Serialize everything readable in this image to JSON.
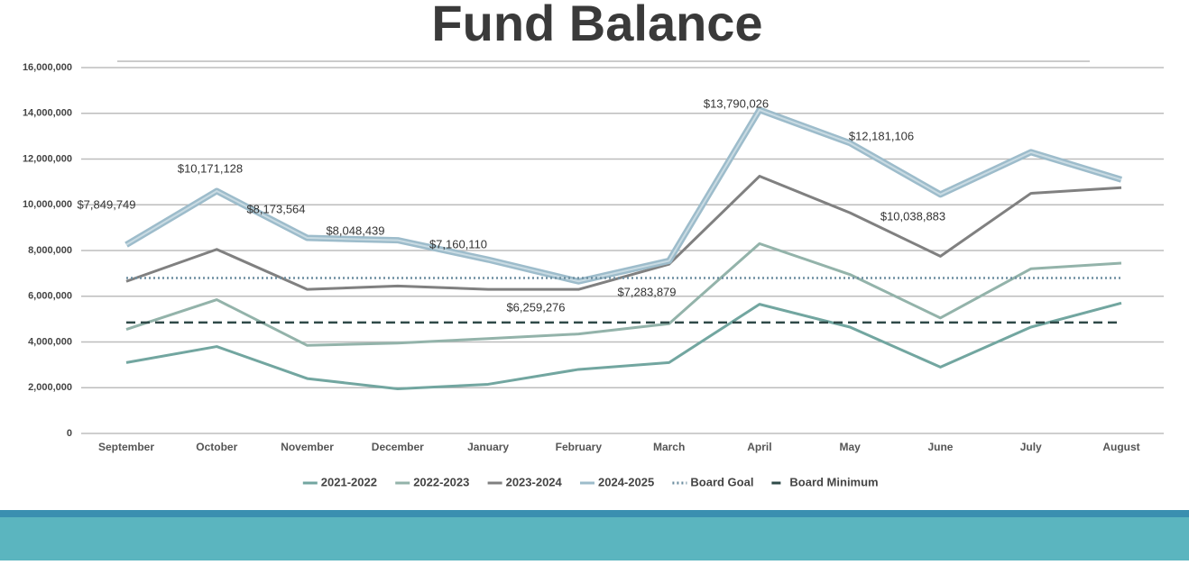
{
  "chart_data": {
    "type": "line",
    "title": "Fund Balance",
    "categories": [
      "September",
      "October",
      "November",
      "December",
      "January",
      "February",
      "March",
      "April",
      "May",
      "June",
      "July",
      "August"
    ],
    "series": [
      {
        "name": "2021-2022",
        "color": "#72a6a0",
        "values": [
          3100000,
          3800000,
          2400000,
          1950000,
          2150000,
          2800000,
          3100000,
          5650000,
          4650000,
          2900000,
          4650000,
          5700000
        ]
      },
      {
        "name": "2022-2023",
        "color": "#93b3aa",
        "values": [
          4550000,
          5850000,
          3850000,
          3950000,
          4150000,
          4350000,
          4800000,
          8300000,
          6950000,
          5050000,
          7200000,
          7450000
        ]
      },
      {
        "name": "2023-2024",
        "color": "#808080",
        "values": [
          6650000,
          8050000,
          6300000,
          6450000,
          6300000,
          6300000,
          7400000,
          11250000,
          9650000,
          7750000,
          10500000,
          10750000
        ]
      },
      {
        "name": "2024-2025",
        "color": "#9dbccb",
        "values": [
          8250000,
          10600000,
          8550000,
          8450000,
          7600000,
          6650000,
          7550000,
          14150000,
          12700000,
          10450000,
          12300000,
          11100000
        ]
      },
      {
        "name": "Board Goal",
        "color": "#6d8ea0",
        "dash": "dotted",
        "values": [
          6800000,
          6800000,
          6800000,
          6800000,
          6800000,
          6800000,
          6800000,
          6800000,
          6800000,
          6800000,
          6800000,
          6800000
        ]
      },
      {
        "name": "Board Minimum",
        "color": "#2f4a48",
        "dash": "dashed",
        "values": [
          4850000,
          4850000,
          4850000,
          4850000,
          4850000,
          4850000,
          4850000,
          4850000,
          4850000,
          4850000,
          4850000,
          4850000
        ]
      }
    ],
    "annotations": [
      "$7,849,749",
      "$10,171,128",
      "$8,173,564",
      "$8,048,439",
      "$7,160,110",
      "$6,259,276",
      "$7,283,879",
      "$13,790,026",
      "$12,181,106",
      "$10,038,883"
    ],
    "ylim": [
      0,
      16000000
    ],
    "yticks": [
      0,
      {
        "value": 2000000,
        "label": "2,000,000"
      },
      {
        "value": 4000000,
        "label": "4,000,000"
      },
      {
        "value": 6000000,
        "label": "6,000,000"
      },
      {
        "value": 8000000,
        "label": "8,000,000"
      },
      {
        "value": 10000000,
        "label": "10,000,000"
      },
      {
        "value": 12000000,
        "label": "12,000,000"
      },
      {
        "value": 14000000,
        "label": "14,000,000"
      },
      {
        "value": 16000000,
        "label": "16,000,000"
      }
    ],
    "grid": true,
    "legend": "bottom"
  }
}
